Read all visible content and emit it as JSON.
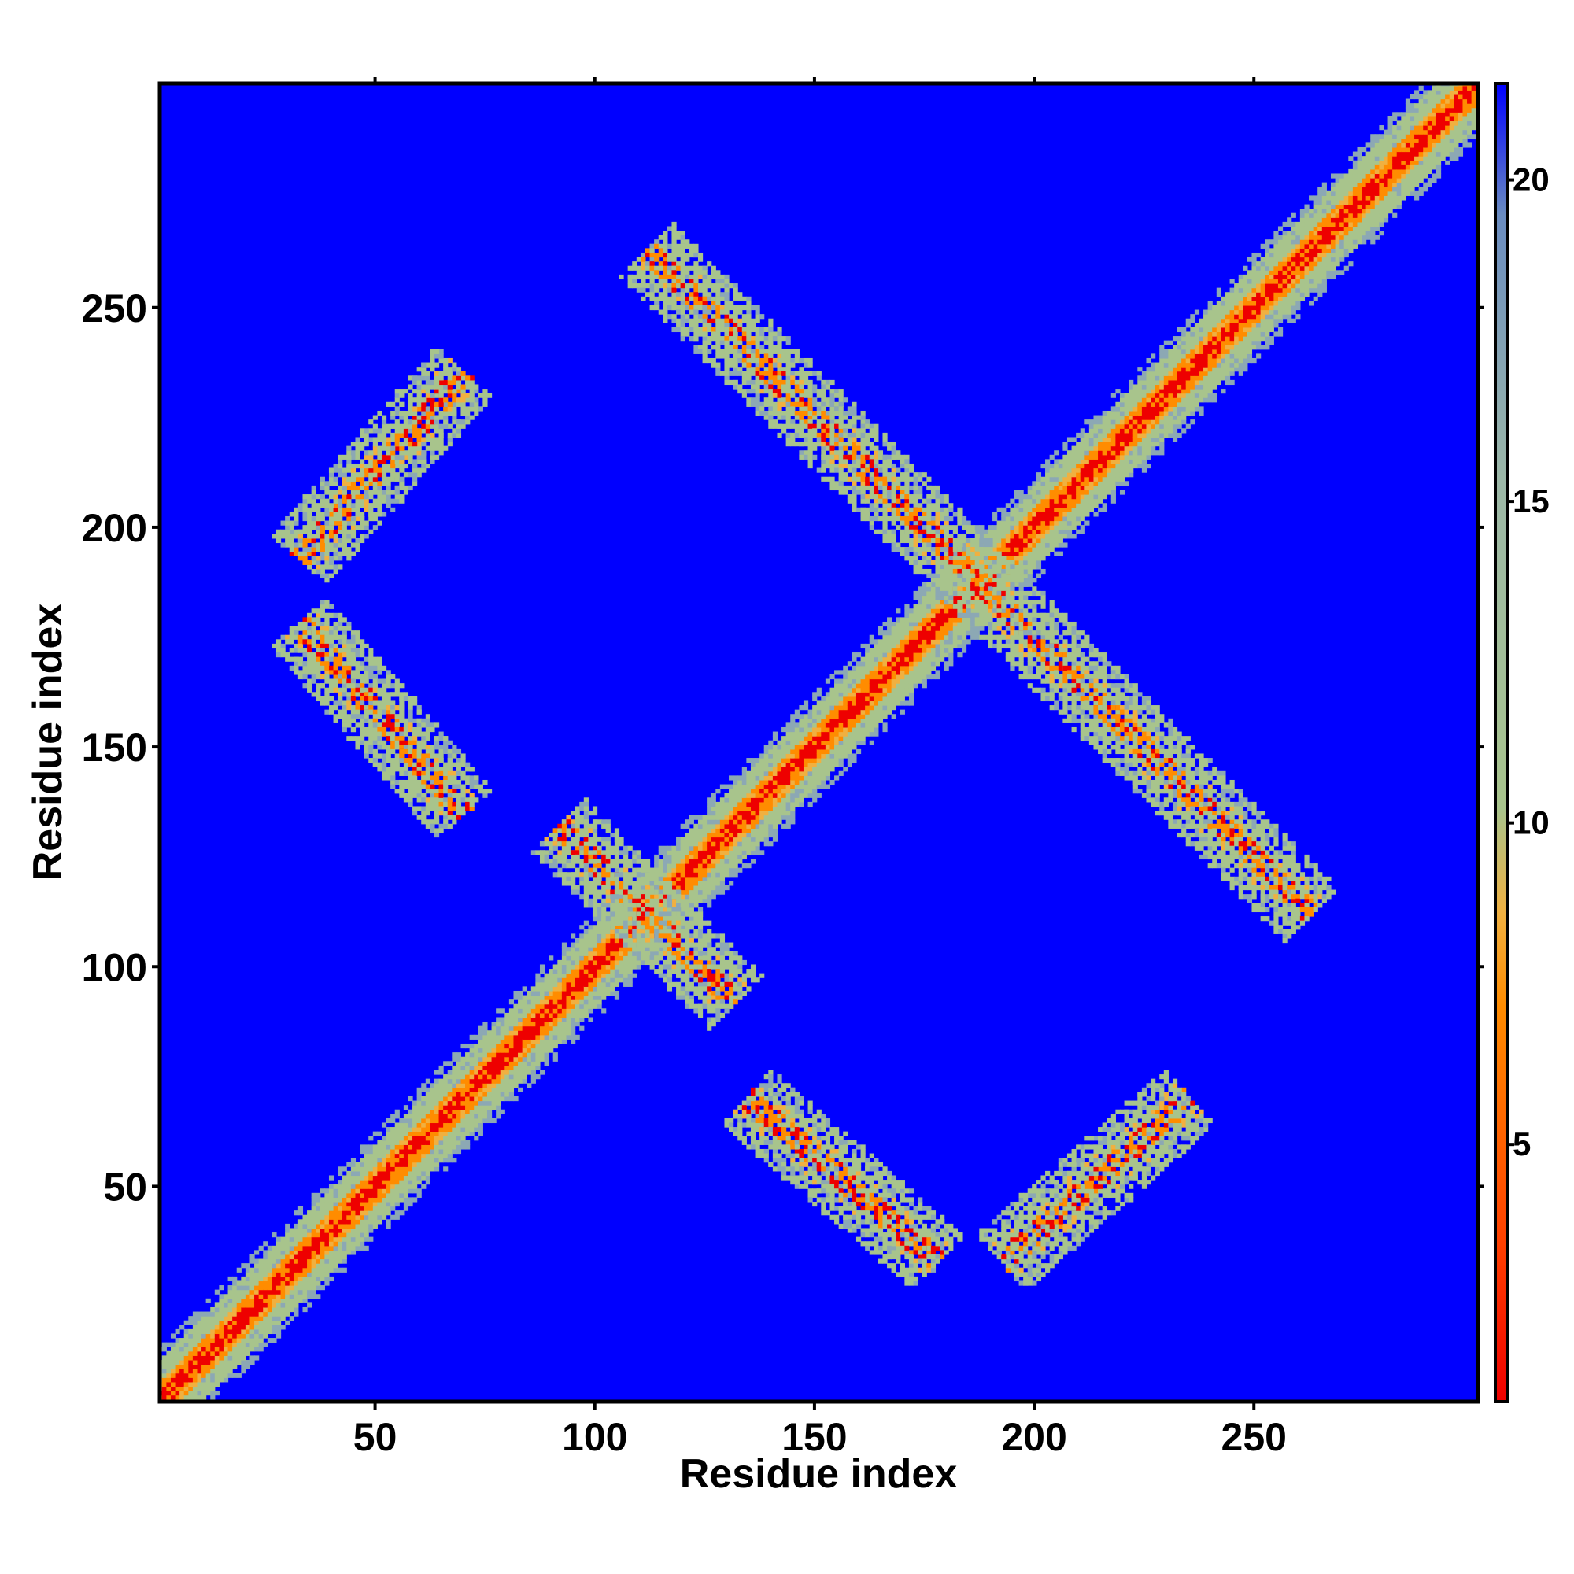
{
  "chart_data": {
    "type": "heatmap",
    "title": "",
    "xlabel": "Residue index",
    "ylabel": "Residue index",
    "xlim": [
      1,
      301
    ],
    "ylim": [
      1,
      301
    ],
    "xticks": [
      50,
      100,
      150,
      200,
      250
    ],
    "yticks": [
      50,
      100,
      150,
      200,
      250
    ],
    "colorbar": {
      "range": [
        1,
        21.5
      ],
      "ticks": [
        5,
        10,
        15,
        20
      ],
      "colors": {
        "close": "#ee0000",
        "mid": "#ff8c00",
        "near": "#f0b040",
        "contact": "#a8c48c",
        "far_contact": "#8ca8b4",
        "background": "#0000ff"
      }
    },
    "description_of_values": "pairwise distance map, symmetric about the diagonal",
    "features": [
      {
        "kind": "diagonal",
        "from": [
          1,
          1
        ],
        "to": [
          301,
          301
        ]
      },
      {
        "kind": "anti_band",
        "from": [
          112,
          263
        ],
        "to": [
          263,
          112
        ]
      },
      {
        "kind": "anti_band",
        "from": [
          92,
          132
        ],
        "to": [
          132,
          92
        ]
      },
      {
        "kind": "parallel_band",
        "from": [
          33,
          193
        ],
        "to": [
          70,
          235
        ]
      },
      {
        "kind": "parallel_band",
        "from": [
          193,
          33
        ],
        "to": [
          235,
          70
        ]
      },
      {
        "kind": "anti_band",
        "from": [
          33,
          178
        ],
        "to": [
          70,
          135
        ]
      },
      {
        "kind": "anti_band",
        "from": [
          135,
          70
        ],
        "to": [
          178,
          33
        ]
      }
    ]
  }
}
